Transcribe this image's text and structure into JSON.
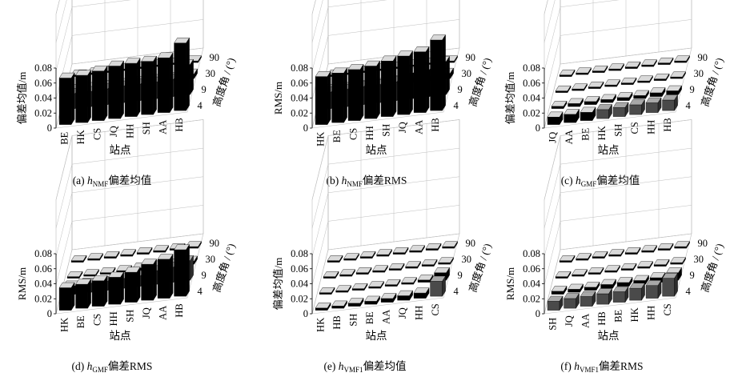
{
  "chart_data": [
    {
      "type": "bar",
      "subtype": "3d-bar",
      "panel": "a",
      "caption": {
        "prefix": "(a) ",
        "var": "h",
        "sub": "NMF",
        "suffix": "偏差均值"
      },
      "zlabel": "偏差均值/m",
      "xlabel": "站点",
      "ylabel": "高度角 / (°)",
      "stations": [
        "BE",
        "HK",
        "CS",
        "JQ",
        "HH",
        "SH",
        "AA",
        "HB"
      ],
      "elevations": [
        "4",
        "9",
        "30",
        "90"
      ],
      "zticks": [
        "0",
        "0.02",
        "0.04",
        "0.06",
        "0.08"
      ],
      "zlim": [
        0,
        0.08
      ],
      "grid": true,
      "values": [
        [
          0.062,
          0.063,
          0.066,
          0.07,
          0.071,
          0.071,
          0.073,
          0.09
        ],
        [
          0.02,
          0.02,
          0.021,
          0.022,
          0.022,
          0.022,
          0.023,
          0.04
        ],
        [
          0.004,
          0.004,
          0.004,
          0.004,
          0.004,
          0.004,
          0.004,
          0.006
        ],
        [
          0.001,
          0.001,
          0.001,
          0.001,
          0.001,
          0.001,
          0.001,
          0.002
        ]
      ]
    },
    {
      "type": "bar",
      "subtype": "3d-bar",
      "panel": "b",
      "caption": {
        "prefix": "(b) ",
        "var": "h",
        "sub": "NMF",
        "suffix": "偏差RMS"
      },
      "zlabel": "RMS/m",
      "xlabel": "站点",
      "ylabel": "高度角 / (°)",
      "stations": [
        "HK",
        "BE",
        "CS",
        "HH",
        "SH",
        "JQ",
        "AA",
        "HB"
      ],
      "elevations": [
        "4",
        "9",
        "30",
        "90"
      ],
      "zticks": [
        "0",
        "0.02",
        "0.04",
        "0.06",
        "0.08"
      ],
      "zlim": [
        0,
        0.08
      ],
      "grid": true,
      "values": [
        [
          0.064,
          0.066,
          0.068,
          0.07,
          0.074,
          0.078,
          0.081,
          0.094
        ],
        [
          0.022,
          0.023,
          0.024,
          0.024,
          0.025,
          0.034,
          0.036,
          0.044
        ],
        [
          0.004,
          0.004,
          0.004,
          0.004,
          0.005,
          0.006,
          0.006,
          0.007
        ],
        [
          0.001,
          0.001,
          0.001,
          0.001,
          0.001,
          0.001,
          0.001,
          0.002
        ]
      ]
    },
    {
      "type": "bar",
      "subtype": "3d-bar",
      "panel": "c",
      "caption": {
        "prefix": "(c) ",
        "var": "h",
        "sub": "GMF",
        "suffix": "偏差均值"
      },
      "zlabel": "偏差均值/m",
      "xlabel": "站点",
      "ylabel": "高度角 / (°)",
      "stations": [
        "JQ",
        "AA",
        "BE",
        "HK",
        "SH",
        "CS",
        "HH",
        "HB"
      ],
      "elevations": [
        "4",
        "9",
        "30",
        "90"
      ],
      "zticks": [
        "0",
        "0.02",
        "0.04",
        "0.06",
        "0.08"
      ],
      "zlim": [
        0,
        0.08
      ],
      "grid": true,
      "values": [
        [
          0.01,
          0.011,
          0.011,
          0.012,
          0.012,
          0.013,
          0.013,
          0.014
        ],
        [
          0.003,
          0.004,
          0.004,
          0.004,
          0.004,
          0.004,
          0.005,
          0.005
        ],
        [
          0.001,
          0.001,
          0.001,
          0.001,
          0.001,
          0.001,
          0.001,
          0.001
        ],
        [
          0.0,
          0.0,
          0.0,
          0.0,
          0.0,
          0.0,
          0.0,
          0.0
        ]
      ]
    },
    {
      "type": "bar",
      "subtype": "3d-bar",
      "panel": "d",
      "caption": {
        "prefix": "(d) ",
        "var": "h",
        "sub": "GMF",
        "suffix": "偏差RMS"
      },
      "zlabel": "RMS/m",
      "xlabel": "站点",
      "ylabel": "高度角 / (°)",
      "stations": [
        "HK",
        "BE",
        "CS",
        "HH",
        "SH",
        "JQ",
        "AA",
        "HB"
      ],
      "elevations": [
        "4",
        "9",
        "30",
        "90"
      ],
      "zticks": [
        "0",
        "0.02",
        "0.04",
        "0.06",
        "0.08"
      ],
      "zlim": [
        0,
        0.08
      ],
      "grid": true,
      "values": [
        [
          0.03,
          0.032,
          0.034,
          0.036,
          0.04,
          0.048,
          0.052,
          0.062
        ],
        [
          0.011,
          0.012,
          0.012,
          0.013,
          0.014,
          0.018,
          0.02,
          0.026
        ],
        [
          0.002,
          0.002,
          0.002,
          0.002,
          0.003,
          0.003,
          0.003,
          0.004
        ],
        [
          0.001,
          0.001,
          0.001,
          0.001,
          0.001,
          0.001,
          0.001,
          0.001
        ]
      ]
    },
    {
      "type": "bar",
      "subtype": "3d-bar",
      "panel": "e",
      "caption": {
        "prefix": "(e) ",
        "var": "h",
        "sub": "VMF1",
        "suffix": "偏差均值"
      },
      "zlabel": "偏差均值/m",
      "xlabel": "站点",
      "ylabel": "高度角 / (°)",
      "stations": [
        "HK",
        "HB",
        "SH",
        "BE",
        "AA",
        "JQ",
        "HH",
        "CS"
      ],
      "elevations": [
        "4",
        "9",
        "30",
        "90"
      ],
      "zticks": [
        "0",
        "0.02",
        "0.04",
        "0.06",
        "0.08"
      ],
      "zlim": [
        0,
        0.08
      ],
      "grid": true,
      "values": [
        [
          0.003,
          0.003,
          0.004,
          0.004,
          0.005,
          0.006,
          0.007,
          0.02
        ],
        [
          0.001,
          0.001,
          0.001,
          0.001,
          0.002,
          0.002,
          0.003,
          0.01
        ],
        [
          0.0,
          0.0,
          0.0,
          0.0,
          0.0,
          0.0,
          0.001,
          0.002
        ],
        [
          0.0,
          0.0,
          0.0,
          0.0,
          0.0,
          0.0,
          0.0,
          0.001
        ]
      ]
    },
    {
      "type": "bar",
      "subtype": "3d-bar",
      "panel": "f",
      "caption": {
        "prefix": "(f) ",
        "var": "h",
        "sub": "VMF1",
        "suffix": "偏差RMS"
      },
      "zlabel": "RMS/m",
      "xlabel": "站点",
      "ylabel": "高度角 / (°)",
      "stations": [
        "SH",
        "JQ",
        "AA",
        "HB",
        "BE",
        "HK",
        "HH",
        "CS"
      ],
      "elevations": [
        "4",
        "9",
        "30",
        "90"
      ],
      "zticks": [
        "0",
        "0.02",
        "0.04",
        "0.06",
        "0.08"
      ],
      "zlim": [
        0,
        0.08
      ],
      "grid": true,
      "values": [
        [
          0.012,
          0.013,
          0.013,
          0.014,
          0.014,
          0.016,
          0.017,
          0.024
        ],
        [
          0.004,
          0.004,
          0.004,
          0.005,
          0.005,
          0.005,
          0.006,
          0.01
        ],
        [
          0.001,
          0.001,
          0.001,
          0.001,
          0.001,
          0.001,
          0.001,
          0.002
        ],
        [
          0.0,
          0.0,
          0.0,
          0.0,
          0.0,
          0.0,
          0.0,
          0.001
        ]
      ]
    }
  ]
}
